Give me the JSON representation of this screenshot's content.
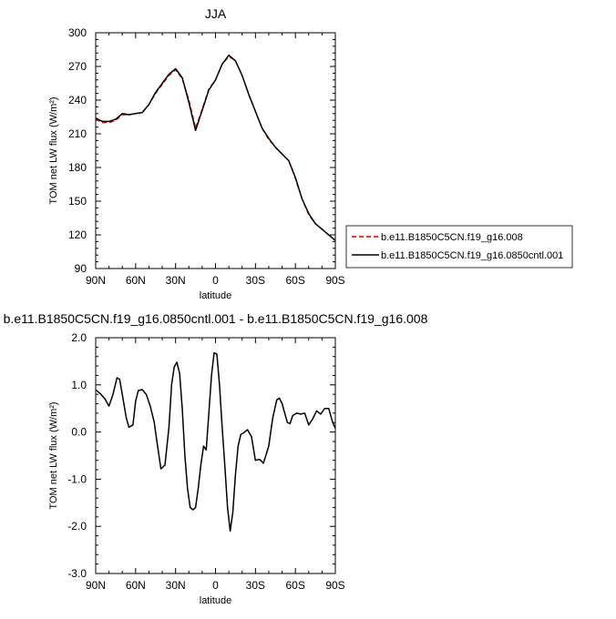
{
  "chart_data": [
    {
      "type": "line",
      "title": "JJA",
      "xlabel": "latitude",
      "ylabel": "TOM net LW flux (W/m²)",
      "xlim": [
        90,
        -90
      ],
      "ylim": [
        90,
        300
      ],
      "x_ticks": [
        90,
        60,
        30,
        0,
        -30,
        -60,
        -90
      ],
      "x_tick_labels": [
        "90N",
        "60N",
        "30N",
        "0",
        "30S",
        "60S",
        "90S"
      ],
      "y_ticks": [
        90,
        120,
        150,
        180,
        210,
        240,
        270,
        300
      ],
      "y_tick_labels": [
        "90",
        "120",
        "150",
        "180",
        "210",
        "240",
        "270",
        "300"
      ],
      "legend": {
        "placement": "right"
      },
      "x": [
        90,
        85,
        80,
        75,
        70,
        65,
        60,
        55,
        50,
        45,
        40,
        35,
        30,
        25,
        20,
        15,
        10,
        5,
        0,
        -5,
        -10,
        -15,
        -20,
        -25,
        -30,
        -35,
        -40,
        -45,
        -50,
        -55,
        -60,
        -65,
        -70,
        -75,
        -80,
        -85,
        -90
      ],
      "series": [
        {
          "name": "b.e11.B1850C5CN.f19_g16.008",
          "color": "#dd0000",
          "dash": "dashed",
          "values": [
            223,
            220,
            220,
            222,
            227,
            227,
            228,
            229,
            236,
            246,
            254,
            262,
            267,
            259,
            240,
            215,
            232,
            250,
            258,
            272,
            279,
            275,
            262,
            245,
            230,
            215,
            205,
            198,
            192,
            186,
            170,
            152,
            138,
            130,
            125,
            120,
            115
          ]
        },
        {
          "name": "b.e11.B1850C5CN.f19_g16.0850cntl.001",
          "color": "#000000",
          "dash": "solid",
          "values": [
            224,
            221,
            221,
            223,
            228,
            227,
            228,
            229,
            236,
            247,
            255,
            263,
            268,
            260,
            238,
            213,
            231,
            249,
            258,
            272,
            280,
            275,
            262,
            245,
            230,
            215,
            206,
            198,
            192,
            186,
            171,
            152,
            139,
            130,
            125,
            120,
            115
          ]
        }
      ]
    },
    {
      "type": "line",
      "title": "b.e11.B1850C5CN.f19_g16.0850cntl.001 - b.e11.B1850C5CN.f19_g16.008",
      "xlabel": "latitude",
      "ylabel": "TOM net LW flux (W/m²)",
      "xlim": [
        90,
        -90
      ],
      "ylim": [
        -3,
        2
      ],
      "x_ticks": [
        90,
        60,
        30,
        0,
        -30,
        -60,
        -90
      ],
      "x_tick_labels": [
        "90N",
        "60N",
        "30N",
        "0",
        "30S",
        "60S",
        "90S"
      ],
      "y_ticks": [
        -3,
        -2,
        -1,
        0,
        1,
        2
      ],
      "y_tick_labels": [
        "-3.0",
        "-2.0",
        "-1.0",
        "0.0",
        "1.0",
        "2.0"
      ],
      "series": [
        {
          "color": "#000000",
          "dash": "solid",
          "x": [
            90,
            86,
            83,
            80,
            77,
            74,
            72,
            70,
            67,
            65,
            62,
            60,
            58,
            55,
            52,
            49,
            46,
            44,
            41,
            38,
            35,
            33,
            31,
            29,
            27,
            25,
            23,
            21,
            19,
            17,
            15,
            13,
            11,
            9,
            7,
            5,
            3,
            1,
            -1,
            -3,
            -5,
            -7,
            -9,
            -11,
            -13,
            -15,
            -17,
            -19,
            -21,
            -24,
            -27,
            -30,
            -33,
            -36,
            -40,
            -43,
            -46,
            -48,
            -50,
            -52,
            -54,
            -56,
            -58,
            -61,
            -64,
            -67,
            -70,
            -73,
            -76,
            -79,
            -82,
            -85,
            -88,
            -90
          ],
          "y": [
            0.9,
            0.8,
            0.7,
            0.55,
            0.8,
            1.15,
            1.12,
            0.8,
            0.3,
            0.1,
            0.15,
            0.65,
            0.88,
            0.9,
            0.8,
            0.55,
            0.2,
            -0.2,
            -0.78,
            -0.7,
            0.1,
            1.0,
            1.38,
            1.48,
            1.25,
            0.5,
            -0.5,
            -1.2,
            -1.6,
            -1.65,
            -1.6,
            -1.2,
            -0.7,
            -0.3,
            -0.38,
            0.4,
            1.2,
            1.68,
            1.65,
            1.0,
            0.1,
            -0.7,
            -1.6,
            -2.1,
            -1.7,
            -0.9,
            -0.3,
            -0.05,
            -0.02,
            0.05,
            -0.1,
            -0.6,
            -0.58,
            -0.66,
            -0.3,
            0.3,
            0.68,
            0.72,
            0.6,
            0.4,
            0.2,
            0.18,
            0.35,
            0.4,
            0.38,
            0.4,
            0.15,
            0.28,
            0.45,
            0.38,
            0.5,
            0.5,
            0.2,
            0.08
          ]
        }
      ]
    }
  ]
}
